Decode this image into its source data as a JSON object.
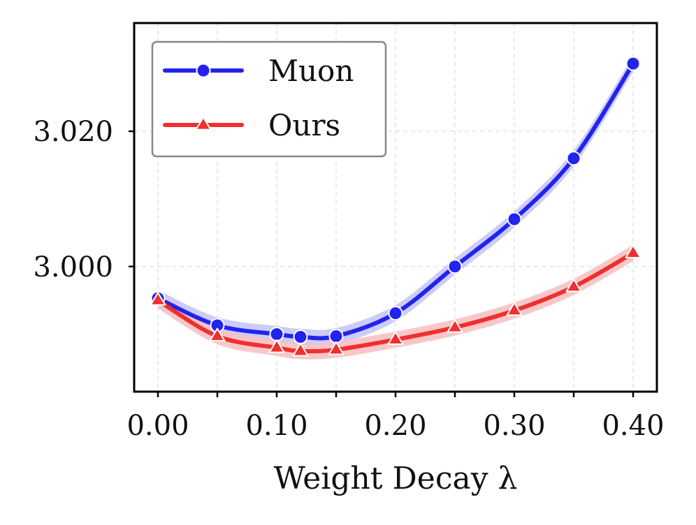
{
  "chart_data": {
    "type": "line",
    "title": "",
    "xlabel": "Weight Decay λ",
    "ylabel": "",
    "x": [
      0.0,
      0.05,
      0.1,
      0.12,
      0.15,
      0.2,
      0.25,
      0.3,
      0.35,
      0.4
    ],
    "xlim": [
      -0.02,
      0.42
    ],
    "ylim": [
      2.9815,
      3.036
    ],
    "xticks": [
      {
        "value": 0.0,
        "label": "0.00"
      },
      {
        "value": 0.05,
        "label": ""
      },
      {
        "value": 0.1,
        "label": "0.10"
      },
      {
        "value": 0.15,
        "label": ""
      },
      {
        "value": 0.2,
        "label": "0.20"
      },
      {
        "value": 0.25,
        "label": ""
      },
      {
        "value": 0.3,
        "label": "0.30"
      },
      {
        "value": 0.35,
        "label": ""
      },
      {
        "value": 0.4,
        "label": "0.40"
      }
    ],
    "yticks": [
      {
        "value": 3.0,
        "label": "3.000"
      },
      {
        "value": 3.02,
        "label": "3.020"
      }
    ],
    "grid": true,
    "legend_position": "top-left",
    "series": [
      {
        "name": "Muon",
        "color": "#2323f0",
        "band_color": "#c7c7f7",
        "marker": "circle",
        "values": [
          2.9953,
          2.9913,
          2.99,
          2.9896,
          2.9897,
          2.9931,
          3.0,
          3.007,
          3.016,
          3.03
        ],
        "band": 0.0012
      },
      {
        "name": "Ours",
        "color": "#f02f2f",
        "band_color": "#f7c2c2",
        "marker": "triangle",
        "values": [
          2.995,
          2.9897,
          2.988,
          2.9875,
          2.9877,
          2.9892,
          2.991,
          2.9935,
          2.997,
          3.002
        ],
        "band": 0.0012
      }
    ]
  }
}
